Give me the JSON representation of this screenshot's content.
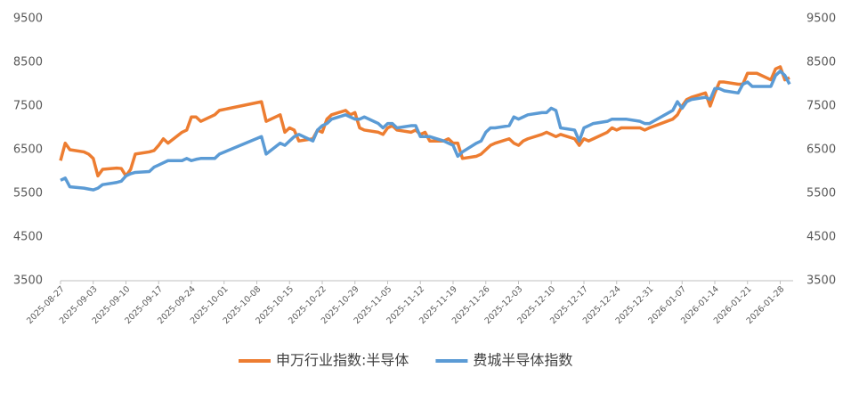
{
  "chart_data": {
    "type": "line",
    "x": [
      "2025-08-27",
      "2025-08-28",
      "2025-08-29",
      "2025-09-01",
      "2025-09-02",
      "2025-09-03",
      "2025-09-04",
      "2025-09-05",
      "2025-09-08",
      "2025-09-09",
      "2025-09-10",
      "2025-09-11",
      "2025-09-12",
      "2025-09-15",
      "2025-09-16",
      "2025-09-17",
      "2025-09-18",
      "2025-09-19",
      "2025-09-22",
      "2025-09-23",
      "2025-09-24",
      "2025-09-25",
      "2025-09-26",
      "2025-09-29",
      "2025-09-30",
      "2025-10-09",
      "2025-10-10",
      "2025-10-13",
      "2025-10-14",
      "2025-10-15",
      "2025-10-16",
      "2025-10-17",
      "2025-10-20",
      "2025-10-21",
      "2025-10-22",
      "2025-10-23",
      "2025-10-24",
      "2025-10-27",
      "2025-10-28",
      "2025-10-29",
      "2025-10-30",
      "2025-10-31",
      "2025-11-03",
      "2025-11-04",
      "2025-11-05",
      "2025-11-06",
      "2025-11-07",
      "2025-11-10",
      "2025-11-11",
      "2025-11-12",
      "2025-11-13",
      "2025-11-14",
      "2025-11-17",
      "2025-11-18",
      "2025-11-19",
      "2025-11-20",
      "2025-11-21",
      "2025-11-24",
      "2025-11-25",
      "2025-11-26",
      "2025-11-27",
      "2025-11-28",
      "2025-12-01",
      "2025-12-02",
      "2025-12-03",
      "2025-12-04",
      "2025-12-05",
      "2025-12-08",
      "2025-12-09",
      "2025-12-10",
      "2025-12-11",
      "2025-12-12",
      "2025-12-15",
      "2025-12-16",
      "2025-12-17",
      "2025-12-18",
      "2025-12-19",
      "2025-12-22",
      "2025-12-23",
      "2025-12-24",
      "2025-12-25",
      "2025-12-26",
      "2025-12-29",
      "2025-12-30",
      "2025-12-31",
      "2026-01-05",
      "2026-01-06",
      "2026-01-07",
      "2026-01-08",
      "2026-01-09",
      "2026-01-12",
      "2026-01-13",
      "2026-01-14",
      "2026-01-15",
      "2026-01-16",
      "2026-01-19",
      "2026-01-20",
      "2026-01-21",
      "2026-01-22",
      "2026-01-23",
      "2026-01-26",
      "2026-01-27",
      "2026-01-28",
      "2026-01-29",
      "2026-01-30"
    ],
    "series": [
      {
        "name": "申万行业指数:半导体",
        "color": "#ED7D31",
        "values": [
          6250,
          6650,
          6500,
          6450,
          6400,
          6300,
          5900,
          6050,
          6080,
          6070,
          5900,
          6050,
          6400,
          6450,
          6480,
          6600,
          6750,
          6650,
          6900,
          6950,
          7250,
          7250,
          7150,
          7300,
          7400,
          7600,
          7150,
          7300,
          6900,
          7000,
          6950,
          6700,
          6750,
          6950,
          6900,
          7200,
          7300,
          7400,
          7300,
          7350,
          7000,
          6950,
          6900,
          6850,
          7000,
          7050,
          6950,
          6900,
          6950,
          6850,
          6900,
          6700,
          6700,
          6750,
          6650,
          6650,
          6300,
          6350,
          6400,
          6500,
          6600,
          6650,
          6750,
          6650,
          6600,
          6700,
          6750,
          6850,
          6900,
          6850,
          6800,
          6850,
          6750,
          6600,
          6750,
          6700,
          6750,
          6900,
          7000,
          6950,
          7000,
          7000,
          7000,
          6950,
          7000,
          7200,
          7300,
          7500,
          7650,
          7700,
          7800,
          7500,
          7800,
          8050,
          8050,
          8000,
          8000,
          8250,
          8250,
          8250,
          8100,
          8350,
          8400,
          8100,
          8150
        ]
      },
      {
        "name": "费城半导体指数",
        "color": "#5B9BD5",
        "axis": "y2",
        "values": [
          5800,
          5850,
          5650,
          5620,
          5600,
          5580,
          5620,
          5700,
          5750,
          5780,
          5900,
          5950,
          5980,
          6000,
          6100,
          6150,
          6200,
          6250,
          6250,
          6300,
          6250,
          6280,
          6300,
          6300,
          6400,
          6800,
          6400,
          6650,
          6600,
          6700,
          6800,
          6850,
          6700,
          6950,
          7050,
          7100,
          7200,
          7300,
          7250,
          7200,
          7200,
          7250,
          7100,
          7000,
          7100,
          7100,
          7000,
          7050,
          7050,
          6800,
          6800,
          6800,
          6700,
          6650,
          6600,
          6350,
          6450,
          6650,
          6700,
          6900,
          7000,
          7000,
          7050,
          7250,
          7200,
          7250,
          7300,
          7350,
          7350,
          7450,
          7400,
          7000,
          6950,
          6700,
          7000,
          7050,
          7100,
          7150,
          7200,
          7200,
          7200,
          7200,
          7150,
          7100,
          7100,
          7400,
          7600,
          7450,
          7600,
          7650,
          7700,
          7650,
          7900,
          7900,
          7850,
          7800,
          8000,
          8050,
          7950,
          7950,
          7950,
          8200,
          8300,
          8200,
          8000
        ]
      }
    ],
    "xlim": [
      "2025-08-27",
      "2026-01-30"
    ],
    "xticks": [
      "2025-08-27",
      "2025-09-03",
      "2025-09-10",
      "2025-09-17",
      "2025-09-24",
      "2025-10-01",
      "2025-10-08",
      "2025-10-15",
      "2025-10-22",
      "2025-10-29",
      "2025-11-05",
      "2025-11-12",
      "2025-11-19",
      "2025-11-26",
      "2025-12-03",
      "2025-12-10",
      "2025-12-17",
      "2025-12-24",
      "2025-12-31",
      "2026-01-07",
      "2026-01-14",
      "2026-01-21",
      "2026-01-28"
    ],
    "ylim": [
      3500,
      9500
    ],
    "yticks": [
      3500,
      4500,
      5500,
      6500,
      7500,
      8500,
      9500
    ],
    "y2lim": [
      3500,
      9500
    ],
    "y2ticks": [
      3500,
      4500,
      5500,
      6500,
      7500,
      8500,
      9500
    ],
    "legend": "bottom"
  }
}
